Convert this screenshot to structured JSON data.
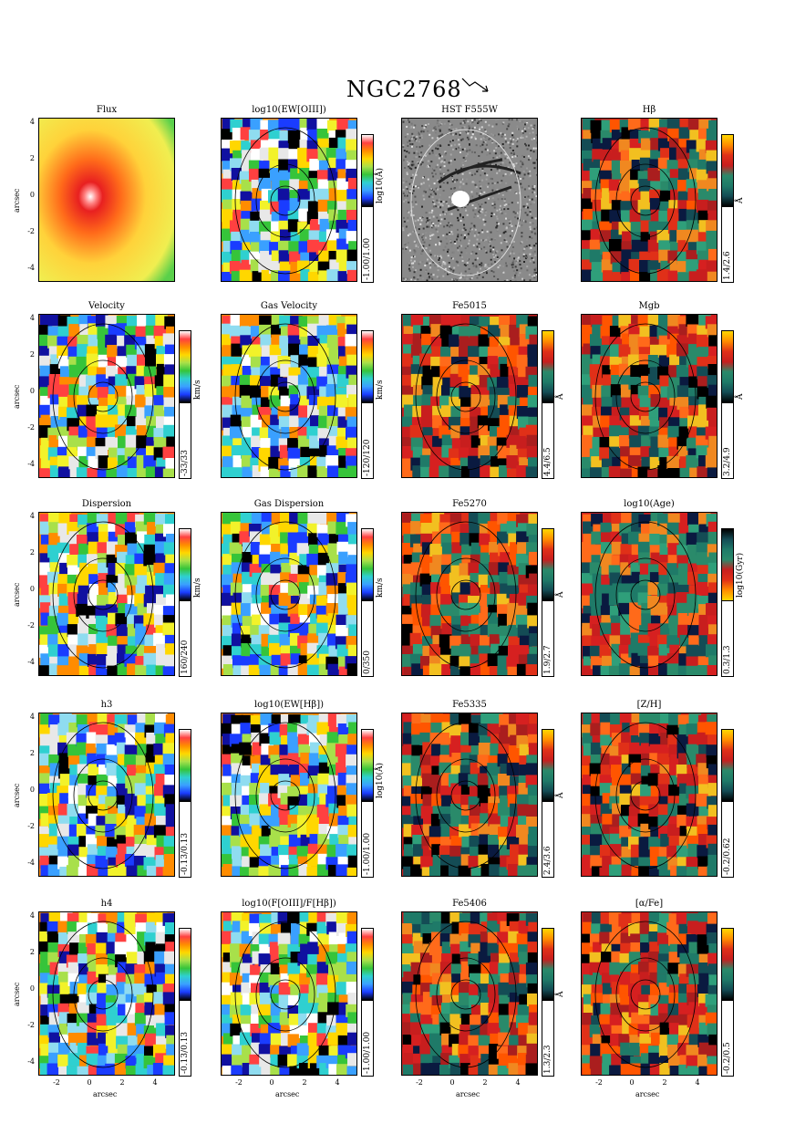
{
  "figure_title": "NGC2768",
  "axis_label": "arcsec",
  "x_ticks": [
    "-2",
    "0",
    "2",
    "4"
  ],
  "y_ticks": [
    "4",
    "2",
    "0",
    "-2",
    "-4"
  ],
  "panels": [
    {
      "title": "Flux",
      "range": "",
      "unit": "",
      "cmap": "flux"
    },
    {
      "title": "log10(EW[OIII])",
      "range": "-1.00/1.00",
      "unit": "log10(Å)",
      "cmap": "rainbow"
    },
    {
      "title": "HST F555W",
      "range": "",
      "unit": "",
      "cmap": "hst"
    },
    {
      "title": "Hβ",
      "range": "1.4/2.6",
      "unit": "Å",
      "cmap": "index"
    },
    {
      "title": "Velocity",
      "range": "-33/33",
      "unit": "km/s",
      "cmap": "rainbow"
    },
    {
      "title": "Gas Velocity",
      "range": "-120/120",
      "unit": "km/s",
      "cmap": "rainbow"
    },
    {
      "title": "Fe5015",
      "range": "4.4/6.5",
      "unit": "Å",
      "cmap": "index"
    },
    {
      "title": "Mgb",
      "range": "3.2/4.9",
      "unit": "Å",
      "cmap": "index"
    },
    {
      "title": "Dispersion",
      "range": "160/240",
      "unit": "km/s",
      "cmap": "rainbow"
    },
    {
      "title": "Gas Dispersion",
      "range": "0/350",
      "unit": "km/s",
      "cmap": "rainbow"
    },
    {
      "title": "Fe5270",
      "range": "1.9/2.7",
      "unit": "Å",
      "cmap": "index"
    },
    {
      "title": "log10(Age)",
      "range": "0.3/1.3",
      "unit": "log10(Gyr)",
      "cmap": "age"
    },
    {
      "title": "h3",
      "range": "-0.13/0.13",
      "unit": "",
      "cmap": "rainbow"
    },
    {
      "title": "log10(EW[Hβ])",
      "range": "-1.00/1.00",
      "unit": "log10(Å)",
      "cmap": "rainbow"
    },
    {
      "title": "Fe5335",
      "range": "2.4/3.6",
      "unit": "Å",
      "cmap": "index"
    },
    {
      "title": "[Z/H]",
      "range": "-0.2/0.62",
      "unit": "",
      "cmap": "index"
    },
    {
      "title": "h4",
      "range": "-0.13/0.13",
      "unit": "",
      "cmap": "rainbow"
    },
    {
      "title": "log10(F[OIII]/F[Hβ])",
      "range": "-1.00/1.00",
      "unit": "",
      "cmap": "rainbow"
    },
    {
      "title": "Fe5406",
      "range": "1.3/2.3",
      "unit": "Å",
      "cmap": "index"
    },
    {
      "title": "[α/Fe]",
      "range": "-0.2/0.5",
      "unit": "",
      "cmap": "index"
    }
  ]
}
